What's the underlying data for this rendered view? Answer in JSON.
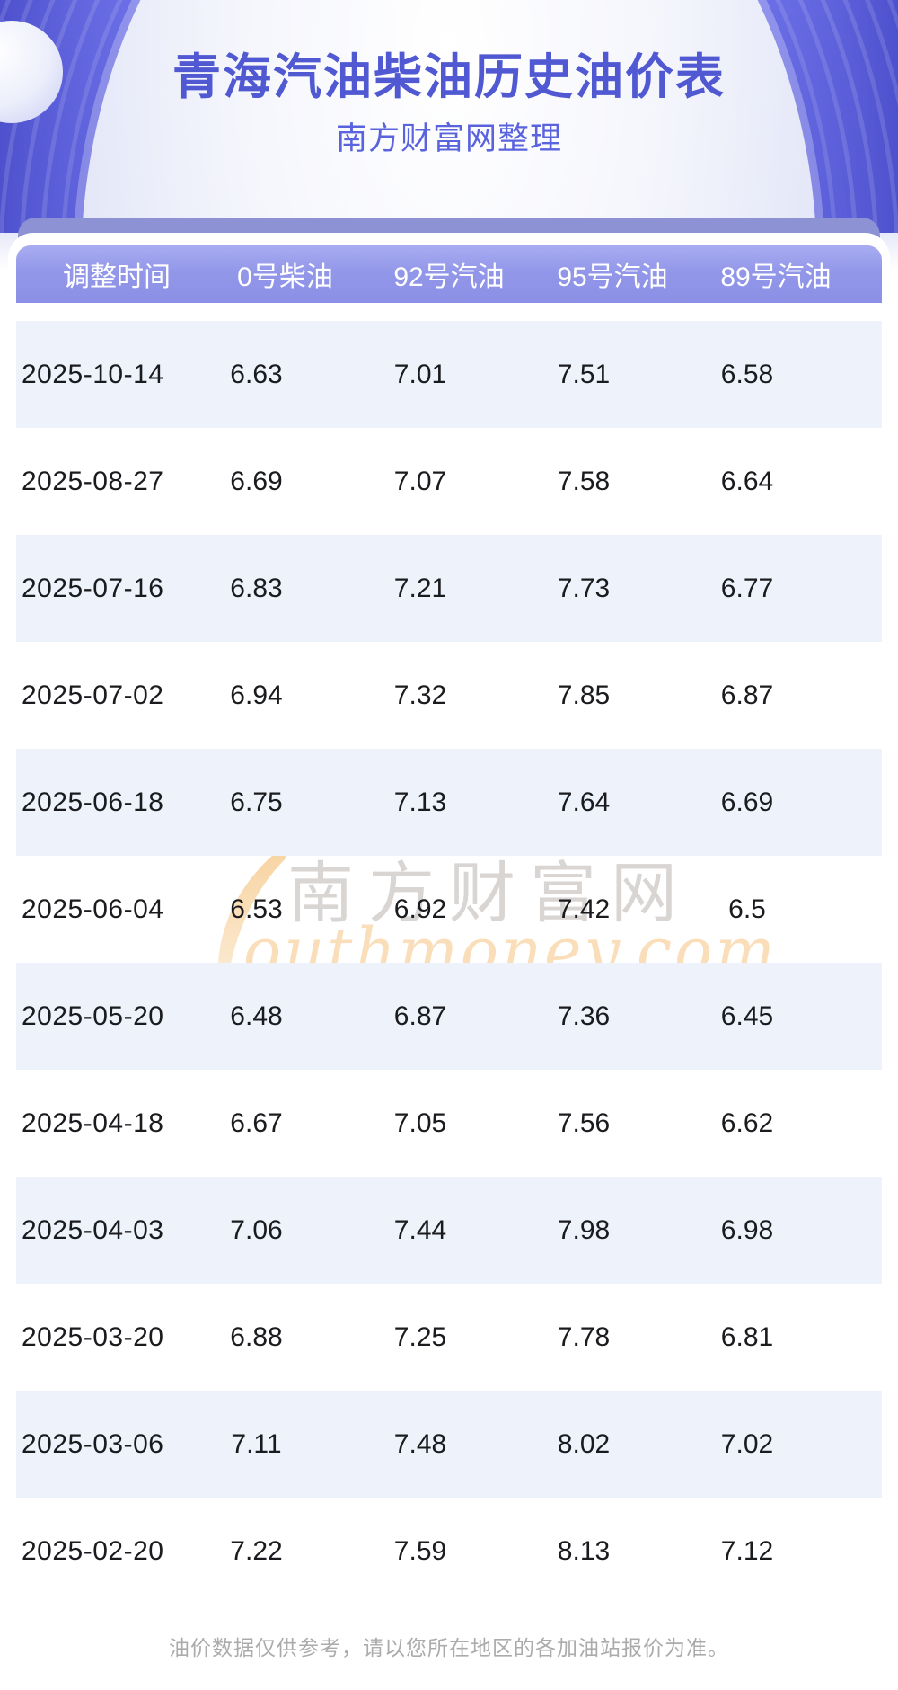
{
  "page": {
    "title": "青海汽油柴油历史油价表",
    "subtitle": "南方财富网整理"
  },
  "chart_data": {
    "type": "table",
    "title": "青海汽油柴油历史油价表",
    "columns": [
      "调整时间",
      "0号柴油",
      "92号汽油",
      "95号汽油",
      "89号汽油"
    ],
    "rows": [
      [
        "2025-10-14",
        6.63,
        7.01,
        7.51,
        6.58
      ],
      [
        "2025-08-27",
        6.69,
        7.07,
        7.58,
        6.64
      ],
      [
        "2025-07-16",
        6.83,
        7.21,
        7.73,
        6.77
      ],
      [
        "2025-07-02",
        6.94,
        7.32,
        7.85,
        6.87
      ],
      [
        "2025-06-18",
        6.75,
        7.13,
        7.64,
        6.69
      ],
      [
        "2025-06-04",
        6.53,
        6.92,
        7.42,
        6.5
      ],
      [
        "2025-05-20",
        6.48,
        6.87,
        7.36,
        6.45
      ],
      [
        "2025-04-18",
        6.67,
        7.05,
        7.56,
        6.62
      ],
      [
        "2025-04-03",
        7.06,
        7.44,
        7.98,
        6.98
      ],
      [
        "2025-03-20",
        6.88,
        7.25,
        7.78,
        6.81
      ],
      [
        "2025-03-06",
        7.11,
        7.48,
        8.02,
        7.02
      ],
      [
        "2025-02-20",
        7.22,
        7.59,
        8.13,
        7.12
      ]
    ],
    "layout": {
      "zebra_striping": true,
      "first_row_shaded": true
    }
  },
  "watermark": {
    "brand_cn": "南方财富网",
    "brand_en_script": "outhmoney.com"
  },
  "footer": {
    "disclaimer": "油价数据仅供参考，请以您所在地区的各加油站报价为准。"
  },
  "colors": {
    "hero_purple": "#6165e2",
    "band_purple": "#8d92d4",
    "header_row_purple": "#9397e9",
    "alt_row_blue": "#edf2fb",
    "title_text": "#5058d2",
    "subtitle_text": "#5a63de",
    "body_text": "#1a1b1e",
    "footer_text": "#ababab",
    "watermark_gold": "#f6c98a",
    "watermark_gray": "#a8a29e"
  }
}
